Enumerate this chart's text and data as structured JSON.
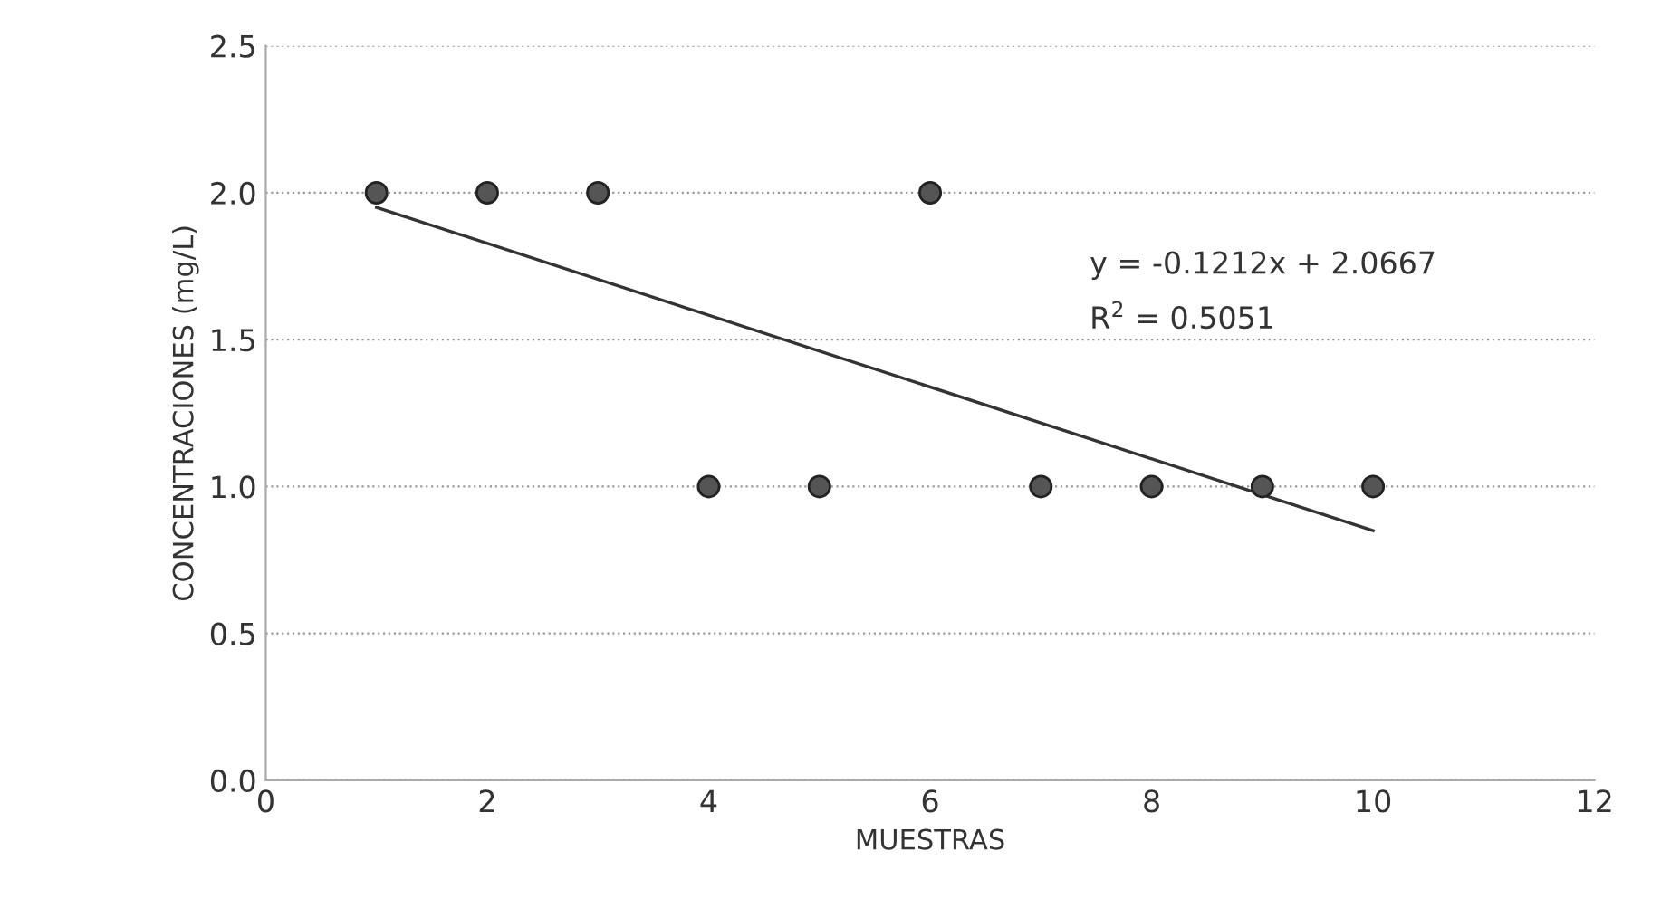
{
  "chart_data": {
    "type": "scatter",
    "xlabel": "MUESTRAS",
    "ylabel": "CONCENTRACIONES (mg/L)",
    "series": [
      {
        "color": "#555555",
        "marker": "circle",
        "x": [
          1,
          2,
          3,
          4,
          5,
          6,
          7,
          8,
          9,
          10
        ],
        "values": [
          2,
          2,
          2,
          1,
          1,
          2,
          1,
          1,
          1,
          1
        ]
      },
      {
        "type": "line",
        "color": "#333333",
        "marker": "none",
        "line_style": "solid",
        "x": [
          1,
          10
        ],
        "values": [
          1.95,
          0.85
        ]
      }
    ],
    "annotations": [
      "y = -0.1212x + 2.0667",
      "R$^{2}$ = 0.5051"
    ],
    "xlim": [
      0,
      12
    ],
    "xticks": [
      0,
      2,
      4,
      6,
      8,
      10,
      12
    ],
    "ylim": [
      0,
      2.5
    ],
    "yticks": [
      {
        "value": 0,
        "label": "0.0"
      },
      {
        "value": 0.5,
        "label": "0.5"
      },
      {
        "value": 1,
        "label": "1.0"
      },
      {
        "value": 1.5,
        "label": "1.5"
      },
      {
        "value": 2,
        "label": "2.0"
      },
      {
        "value": 2.5,
        "label": "2.5"
      }
    ],
    "grid": "y",
    "legend": false
  }
}
